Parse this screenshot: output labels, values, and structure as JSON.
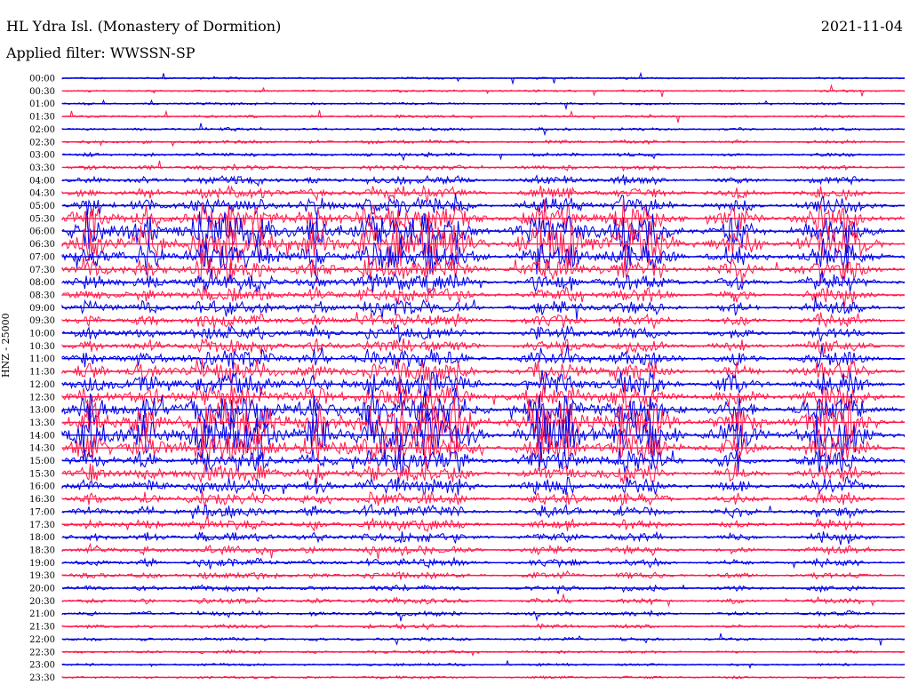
{
  "header": {
    "station": "HL Ydra Isl. (Monastery of Dormition)",
    "filter": "Applied filter: WWSSN-SP",
    "date": "2021-11-04",
    "amplitude_label": "HNZ - 25000"
  },
  "colors": {
    "trace_a": "#0000e6",
    "trace_b": "#ff1a4b"
  },
  "chart_data": {
    "type": "helicorder",
    "title": "HL Ydra Isl. (Monastery of Dormition)",
    "ylabel": "HNZ - 25000",
    "row_labels": [
      "00:00",
      "00:30",
      "01:00",
      "01:30",
      "02:00",
      "02:30",
      "03:00",
      "03:30",
      "04:00",
      "04:30",
      "05:00",
      "05:30",
      "06:00",
      "06:30",
      "07:00",
      "07:30",
      "08:00",
      "08:30",
      "09:00",
      "09:30",
      "10:00",
      "10:30",
      "11:00",
      "11:30",
      "12:00",
      "12:30",
      "13:00",
      "13:30",
      "14:00",
      "14:30",
      "15:00",
      "15:30",
      "16:00",
      "16:30",
      "17:00",
      "17:30",
      "18:00",
      "18:30",
      "19:00",
      "19:30",
      "20:00",
      "20:30",
      "21:00",
      "21:30",
      "22:00",
      "22:30",
      "23:00",
      "23:30"
    ],
    "row_activity": [
      0.02,
      0.02,
      0.03,
      0.03,
      0.04,
      0.05,
      0.06,
      0.08,
      0.15,
      0.22,
      0.35,
      0.55,
      0.75,
      0.85,
      0.6,
      0.45,
      0.35,
      0.3,
      0.28,
      0.25,
      0.25,
      0.28,
      0.35,
      0.4,
      0.45,
      0.55,
      0.7,
      0.85,
      0.95,
      0.7,
      0.45,
      0.35,
      0.3,
      0.25,
      0.22,
      0.2,
      0.18,
      0.16,
      0.14,
      0.12,
      0.1,
      0.09,
      0.08,
      0.06,
      0.05,
      0.04,
      0.03,
      0.03
    ],
    "event_columns_minutes": [
      1,
      3,
      5,
      6,
      7,
      9,
      11,
      12,
      13,
      14,
      17,
      18,
      20,
      21,
      24,
      27,
      28
    ],
    "trace_colors": [
      "blue",
      "red"
    ]
  }
}
